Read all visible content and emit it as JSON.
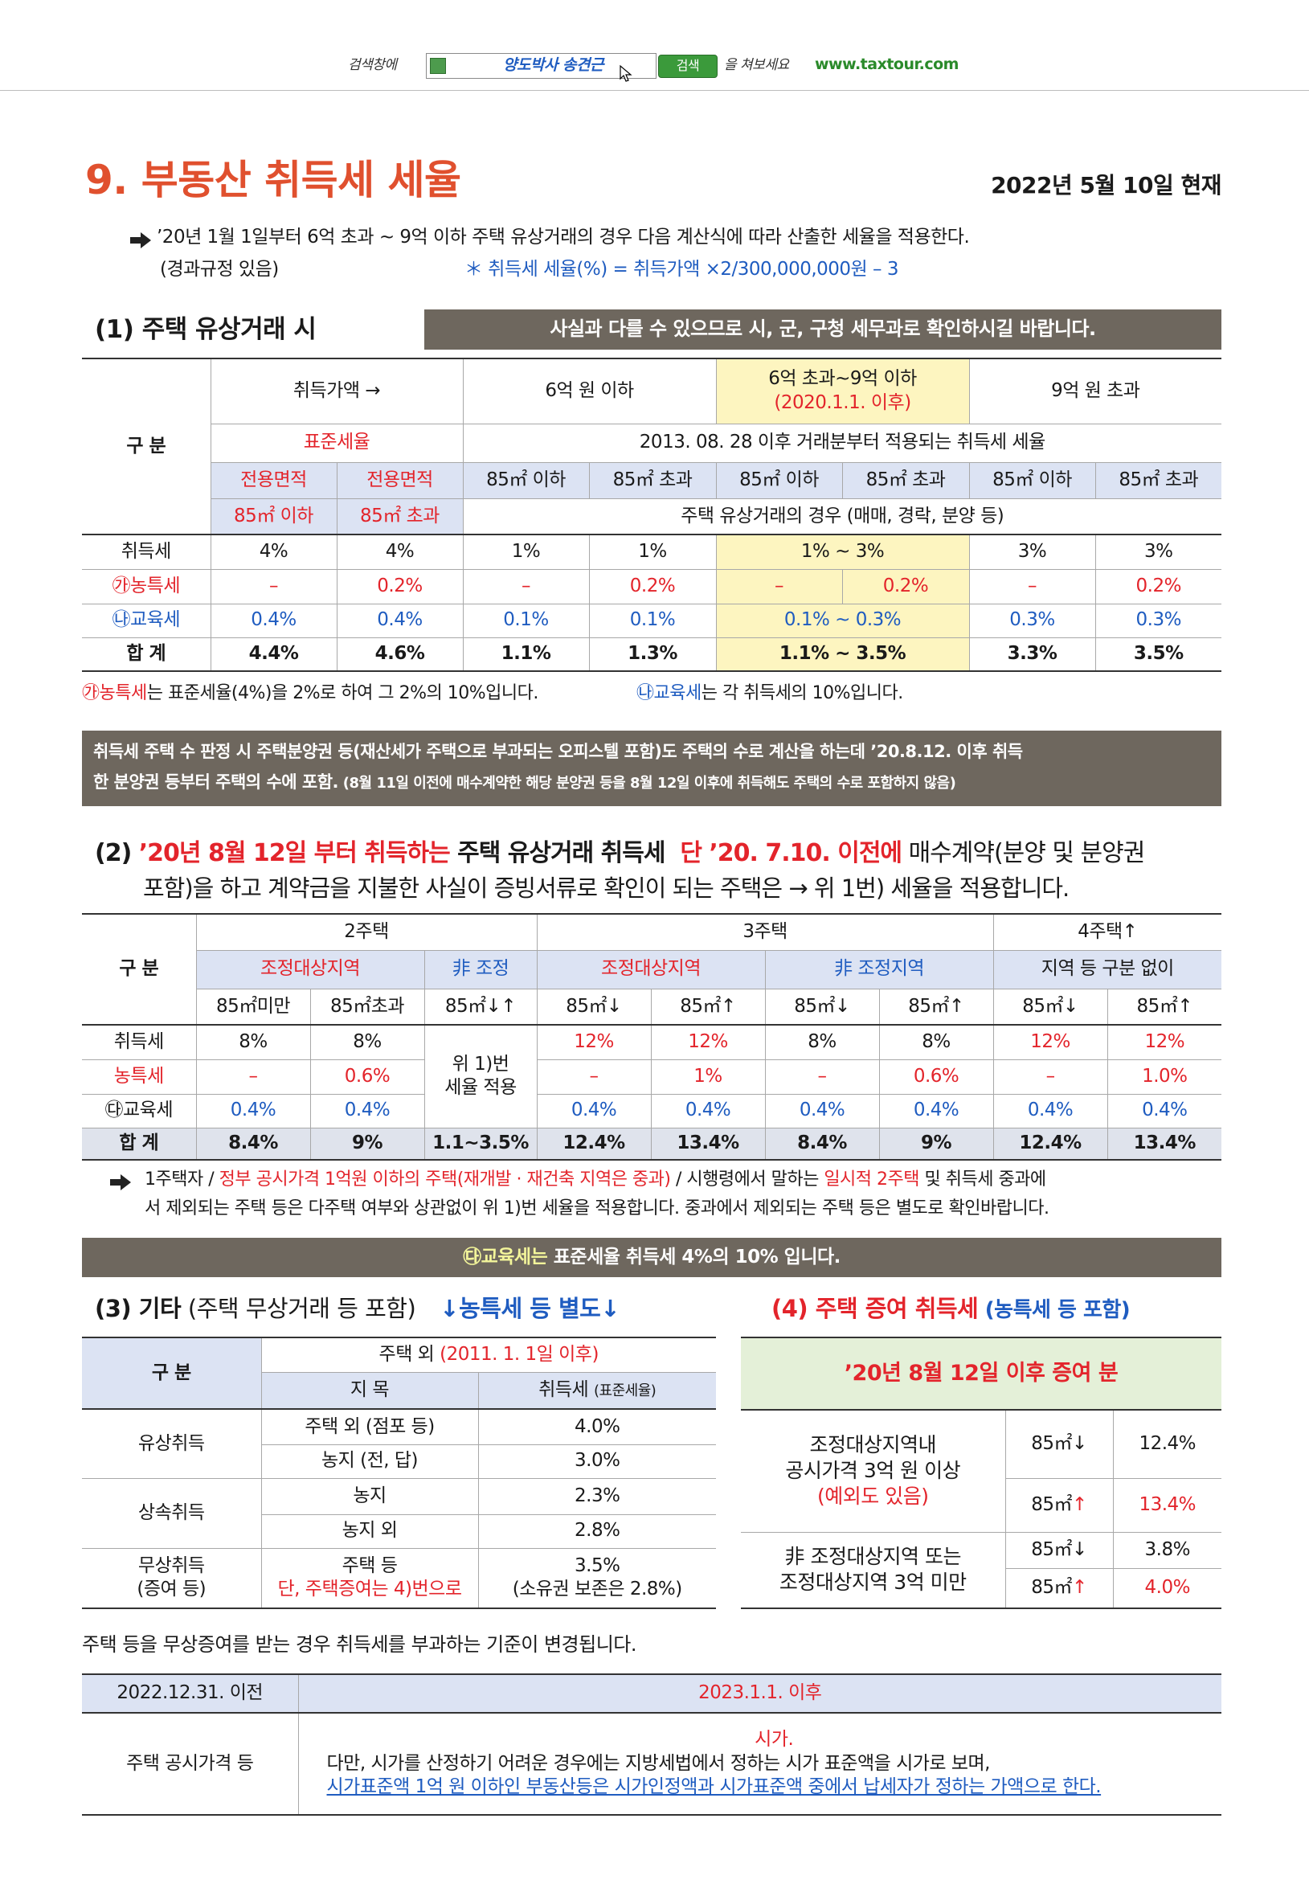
{
  "search_bar": {
    "prefix": "검색창에",
    "query": "양도박사 송견근",
    "button": "검색",
    "suffix": "을 쳐보세요",
    "url": "www.taxtour.com"
  },
  "header": {
    "title": "9. 부동산 취득세 세율",
    "date": "2022년 5월 10일 현재"
  },
  "intro": {
    "line1": "’20년 1월 1일부터 6억 초과 ~ 9억 이하 주택 유상거래의 경우 다음 계산식에 따라 산출한 세율을 적용한다.",
    "line2": "(경과규정 있음)",
    "formula": "＊ 취득세 세율(%) = 취득가액 ×2/300,000,000원 – 3"
  },
  "section1": {
    "title": "(1) 주택 유상거래 시",
    "banner": "사실과 다를 수 있으므로 시, 군, 구청 세무과로 확인하시길 바랍니다.",
    "table": {
      "rows": [
        [
          "구 분",
          "취득가액 →",
          "6억 원 이하",
          [
            "6억 초과~9억 이하",
            "(2020.1.1. 이후)"
          ],
          "9억 원 초과"
        ],
        [
          "표준세율",
          "2013. 08. 28 이후 거래분부터 적용되는 취득세 세율"
        ],
        [
          "전용면적",
          "전용면적",
          "85㎡ 이하",
          "85㎡ 초과",
          "85㎡ 이하",
          "85㎡ 초과",
          "85㎡ 이하",
          "85㎡ 초과"
        ],
        [
          "85㎡ 이하",
          "85㎡ 초과",
          "주택 유상거래의 경우 (매매, 경락, 분양 등)"
        ],
        [
          "취득세",
          "4%",
          "4%",
          "1%",
          "1%",
          "1% ~ 3%",
          "3%",
          "3%"
        ],
        [
          "㉮농특세",
          "–",
          "0.2%",
          "–",
          "0.2%",
          "–",
          "0.2%",
          "–",
          "0.2%"
        ],
        [
          "㉯교육세",
          "0.4%",
          "0.4%",
          "0.1%",
          "0.1%",
          "0.1% ~ 0.3%",
          "0.3%",
          "0.3%"
        ],
        [
          "합 계",
          "4.4%",
          "4.6%",
          "1.1%",
          "1.3%",
          "1.1% ~ 3.5%",
          "3.3%",
          "3.5%"
        ]
      ]
    },
    "note": [
      "㉮농특세",
      "는 표준세율(4%)을 2%로 하여 그 2%의 10%입니다.",
      "㉯교육세",
      "는 각 취득세의 10%입니다."
    ],
    "box": {
      "line1": "취득세 주택 수 판정 시 주택분양권 등(재산세가 주택으로 부과되는 오피스텔 포함)도 주택의 수로 계산을 하는데 ’20.8.12. 이후 취득",
      "line2": [
        "한 분양권 등부터 주택의 수에 포함.",
        " (8월 11일 이전에 매수계약한 해당 분양권 등을 8월 12일 이후에 취득해도 주택의 수로 포함하지 않음)"
      ]
    }
  },
  "section2": {
    "heading": {
      "line1": [
        "(2) ",
        "’20년 8월 12일 부터 취득하는",
        " 주택 유상거래 취득세  ",
        "단 ’20. 7.10. 이전에",
        " 매수계약(분양 및 분양권"
      ],
      "line2": "포함)을 하고 계약금을 지불한 사실이 증빙서류로 확인이 되는 주택은 → 위 1번) 세율을 적용합니다."
    },
    "table": {
      "rows": [
        [
          "구 분",
          "2주택",
          "3주택",
          "4주택↑"
        ],
        [
          "조정대상지역",
          "非 조정",
          "조정대상지역",
          "非 조정지역",
          "지역 등 구분 없이"
        ],
        [
          "85㎡미만",
          "85㎡초과",
          "85㎡↓↑",
          "85㎡↓",
          "85㎡↑",
          "85㎡↓",
          "85㎡↑",
          "85㎡↓",
          "85㎡↑"
        ],
        [
          "취득세",
          "8%",
          "8%",
          [
            "위 1)번",
            "세율 적용"
          ],
          "12%",
          "12%",
          "8%",
          "8%",
          "12%",
          "12%"
        ],
        [
          "농특세",
          "–",
          "0.6%",
          "–",
          "1%",
          "–",
          "0.6%",
          "–",
          "1.0%"
        ],
        [
          "㉰교육세",
          "0.4%",
          "0.4%",
          "0.4%",
          "0.4%",
          "0.4%",
          "0.4%",
          "0.4%",
          "0.4%"
        ],
        [
          "합 계",
          "8.4%",
          "9%",
          "1.1~3.5%",
          "12.4%",
          "13.4%",
          "8.4%",
          "9%",
          "12.4%",
          "13.4%"
        ]
      ]
    },
    "note": {
      "line1": [
        "1주택자 / ",
        "정부 공시가격 1억원 이하의 주택(재개발 · 재건축 지역은 중과)",
        " / 시행령에서 말하는 ",
        "일시적 2주택",
        " 및 취득세 중과에"
      ],
      "line2": "서 제외되는 주택 등은 다주택 여부와 상관없이 위 1)번 세율을 적용합니다. 중과에서 제외되는 주택 등은 별도로 확인바랍니다."
    },
    "bar": [
      "㉰교육세는",
      " 표준세율 취득세 4%의 10% 입니다."
    ]
  },
  "section3": {
    "heading": [
      "(3) 기타",
      " (주택 무상거래 등 포함)",
      "↓농특세 등 별도↓"
    ],
    "table": {
      "rows": [
        [
          "구 분",
          [
            "주택 외 ",
            "(2011. 1. 1일 이후)"
          ]
        ],
        [
          "지 목",
          [
            "취득세 ",
            "(표준세율)"
          ]
        ],
        [
          "유상취득",
          "주택 외 (점포 등)",
          "4.0%"
        ],
        [
          "농지 (전, 답)",
          "3.0%"
        ],
        [
          "상속취득",
          "농지",
          "2.3%"
        ],
        [
          "농지 외",
          "2.8%"
        ],
        [
          [
            "무상취득",
            "(증여 등)"
          ],
          [
            "주택 등",
            "단, 주택증여는 4)번으로"
          ],
          [
            "3.5%",
            "(소유권 보존은 2.8%)"
          ]
        ]
      ]
    }
  },
  "section4": {
    "heading": [
      "(4) 주택 증여 취득세",
      " (농특세 등 포함)"
    ],
    "table": {
      "rows": [
        [
          "’20년 8월 12일 이후 증여 분"
        ],
        [
          [
            "조정대상지역내",
            "공시가격 3억 원 이상",
            "(예외도 있음)"
          ],
          [
            "85㎡",
            "↓"
          ],
          "12.4%"
        ],
        [
          [
            "85㎡",
            "↑"
          ],
          "13.4%"
        ],
        [
          [
            "非 조정대상지역 또는",
            "조정대상지역 3억 미만"
          ],
          [
            "85㎡",
            "↓"
          ],
          "3.8%"
        ],
        [
          [
            "85㎡",
            "↑"
          ],
          "4.0%"
        ]
      ]
    }
  },
  "section5": {
    "notice": "주택 등을 무상증여를 받는 경우 취득세를 부과하는 기준이 변경됩니다.",
    "table": {
      "rows": [
        [
          "2022.12.31. 이전",
          "2023.1.1. 이후"
        ],
        [
          "주택 공시가격 등",
          [
            "시가.",
            "다만, 시가를 산정하기 어려운 경우에는 지방세법에서 정하는 시가 표준액을 시가로 보며,",
            "시가표준액 1억 원 이하인 부동산등은 시가인정액과 시가표준액 중에서 납세자가 정하는 가액으로 한다."
          ]
        ]
      ]
    }
  }
}
